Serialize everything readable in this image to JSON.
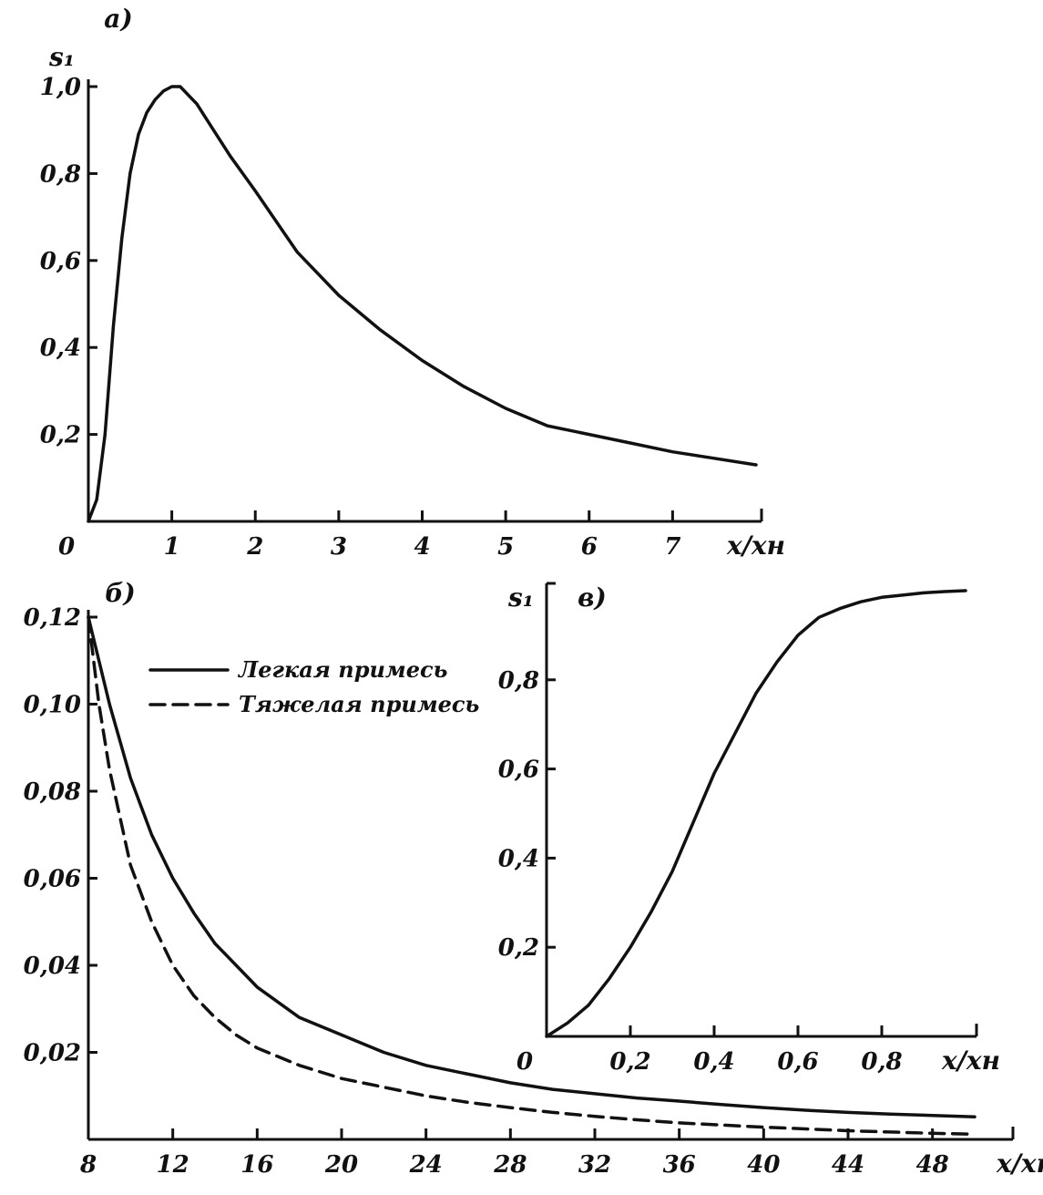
{
  "chart_data": [
    {
      "id": "a",
      "panel_label": "а)",
      "type": "line",
      "ylabel": "s₁",
      "xlabel": "x/xн",
      "origin_label": "0",
      "xlim": [
        0,
        8
      ],
      "ylim": [
        0,
        1.0
      ],
      "x_ticks": [
        1,
        2,
        3,
        4,
        5,
        6,
        7
      ],
      "x_tick_labels": [
        "1",
        "2",
        "3",
        "4",
        "5",
        "6",
        "7"
      ],
      "y_ticks": [
        0.2,
        0.4,
        0.6,
        0.8,
        1.0
      ],
      "y_tick_labels": [
        "0,2",
        "0,4",
        "0,6",
        "0,8",
        "1,0"
      ],
      "grid": false,
      "series": [
        {
          "style": "solid",
          "x": [
            0,
            0.1,
            0.2,
            0.3,
            0.4,
            0.5,
            0.6,
            0.7,
            0.8,
            0.9,
            1.0,
            1.1,
            1.3,
            1.5,
            1.7,
            2.0,
            2.5,
            3.0,
            3.5,
            4.0,
            4.5,
            5.0,
            5.5,
            6.0,
            6.5,
            7.0,
            7.5,
            8.0
          ],
          "y": [
            0,
            0.05,
            0.2,
            0.45,
            0.65,
            0.8,
            0.89,
            0.94,
            0.97,
            0.99,
            1.0,
            1.0,
            0.96,
            0.9,
            0.84,
            0.76,
            0.62,
            0.52,
            0.44,
            0.37,
            0.31,
            0.26,
            0.22,
            0.2,
            0.18,
            0.16,
            0.145,
            0.13
          ]
        }
      ]
    },
    {
      "id": "b",
      "panel_label": "б)",
      "type": "line",
      "ylabel": "",
      "xlabel": "x/xн",
      "xlim": [
        8,
        50
      ],
      "ylim": [
        0,
        0.12
      ],
      "x_ticks": [
        8,
        12,
        16,
        20,
        24,
        28,
        32,
        36,
        40,
        44,
        48
      ],
      "x_tick_labels": [
        "8",
        "12",
        "16",
        "20",
        "24",
        "28",
        "32",
        "36",
        "40",
        "44",
        "48"
      ],
      "y_ticks": [
        0.02,
        0.04,
        0.06,
        0.08,
        0.1,
        0.12
      ],
      "y_tick_labels": [
        "0,02",
        "0,04",
        "0,06",
        "0,08",
        "0,10",
        "0,12"
      ],
      "grid": false,
      "legend_position": "top-left",
      "series": [
        {
          "name": "Легкая примесь",
          "style": "solid",
          "x": [
            8,
            9,
            10,
            11,
            12,
            13,
            14,
            15,
            16,
            18,
            20,
            22,
            24,
            26,
            28,
            30,
            32,
            34,
            36,
            38,
            40,
            42,
            44,
            46,
            48,
            50
          ],
          "y": [
            0.12,
            0.1,
            0.083,
            0.07,
            0.06,
            0.052,
            0.045,
            0.04,
            0.035,
            0.028,
            0.024,
            0.02,
            0.017,
            0.015,
            0.013,
            0.0115,
            0.0105,
            0.0095,
            0.0088,
            0.008,
            0.0073,
            0.0067,
            0.0062,
            0.0058,
            0.0055,
            0.0052
          ]
        },
        {
          "name": "Тяжелая примесь",
          "style": "dashed",
          "x": [
            8,
            8.5,
            9,
            10,
            11,
            12,
            13,
            14,
            15,
            16,
            18,
            20,
            22,
            24,
            26,
            28,
            30,
            32,
            34,
            36,
            38,
            40,
            42,
            44,
            46,
            48,
            50
          ],
          "y": [
            0.12,
            0.1,
            0.085,
            0.063,
            0.05,
            0.04,
            0.033,
            0.028,
            0.024,
            0.021,
            0.017,
            0.014,
            0.012,
            0.01,
            0.0085,
            0.0073,
            0.0062,
            0.0053,
            0.0045,
            0.0038,
            0.0033,
            0.0028,
            0.0024,
            0.002,
            0.0017,
            0.0014,
            0.0012
          ]
        }
      ]
    },
    {
      "id": "c",
      "panel_label": "в)",
      "type": "line",
      "ylabel": "s₁",
      "xlabel": "x/xн",
      "origin_label": "0",
      "xlim": [
        0,
        1.0
      ],
      "ylim": [
        0,
        1.0
      ],
      "x_ticks": [
        0.2,
        0.4,
        0.6,
        0.8
      ],
      "x_tick_labels": [
        "0,2",
        "0,4",
        "0,6",
        "0,8"
      ],
      "y_ticks": [
        0.2,
        0.4,
        0.6,
        0.8
      ],
      "y_tick_labels": [
        "0,2",
        "0,4",
        "0,6",
        "0,8"
      ],
      "grid": false,
      "series": [
        {
          "style": "solid",
          "x": [
            0,
            0.05,
            0.1,
            0.15,
            0.2,
            0.25,
            0.3,
            0.35,
            0.4,
            0.45,
            0.5,
            0.55,
            0.6,
            0.65,
            0.7,
            0.75,
            0.8,
            0.85,
            0.9,
            0.95,
            1.0
          ],
          "y": [
            0,
            0.03,
            0.07,
            0.13,
            0.2,
            0.28,
            0.37,
            0.48,
            0.59,
            0.68,
            0.77,
            0.84,
            0.9,
            0.94,
            0.96,
            0.975,
            0.985,
            0.99,
            0.995,
            0.998,
            1.0
          ]
        }
      ]
    }
  ]
}
